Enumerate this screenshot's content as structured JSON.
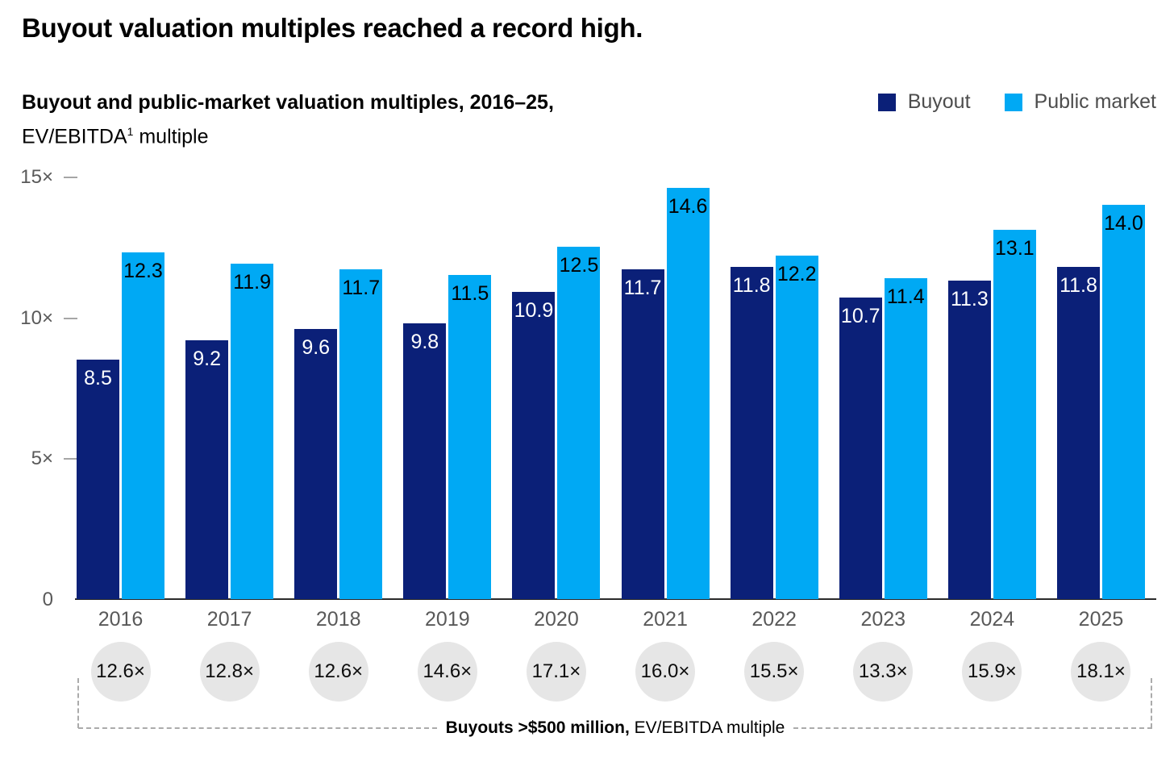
{
  "title": "Buyout valuation multiples reached a record high.",
  "subtitle": "Buyout and public-market valuation multiples, 2016–25,",
  "unit_label": {
    "pre": "EV/EBITDA",
    "sup": "1",
    "post": " multiple"
  },
  "legend": [
    {
      "label": "Buyout",
      "color": "#0B2078"
    },
    {
      "label": "Public market",
      "color": "#00A9F4"
    }
  ],
  "y_axis": {
    "ticks": [
      {
        "value": 15,
        "label": "15×"
      },
      {
        "value": 10,
        "label": "10×"
      },
      {
        "value": 5,
        "label": "5×"
      },
      {
        "value": 0,
        "label": "0"
      }
    ]
  },
  "chart_data": {
    "type": "bar",
    "title": "Buyout and public-market valuation multiples, 2016–25, EV/EBITDA multiple",
    "categories": [
      "2016",
      "2017",
      "2018",
      "2019",
      "2020",
      "2021",
      "2022",
      "2023",
      "2024",
      "2025"
    ],
    "series": [
      {
        "name": "Buyout",
        "color": "#0B2078",
        "values": [
          8.5,
          9.2,
          9.6,
          9.8,
          10.9,
          11.7,
          11.8,
          10.7,
          11.3,
          11.8
        ]
      },
      {
        "name": "Public market",
        "color": "#00A9F4",
        "values": [
          12.3,
          11.9,
          11.7,
          11.5,
          12.5,
          14.6,
          12.2,
          11.4,
          13.1,
          14.0
        ]
      }
    ],
    "ylim": [
      0,
      15
    ],
    "yticks": [
      0,
      5,
      10,
      15
    ],
    "grid": false,
    "legend_position": "top-right",
    "annotations": {
      "name": "Buyouts >$500 million, EV/EBITDA multiple",
      "suffix": "×",
      "values": [
        12.6,
        12.8,
        12.6,
        14.6,
        17.1,
        16.0,
        15.5,
        13.3,
        15.9,
        18.1
      ]
    }
  },
  "footer": {
    "bold": "Buyouts >$500 million,",
    "regular": " EV/EBITDA multiple"
  }
}
